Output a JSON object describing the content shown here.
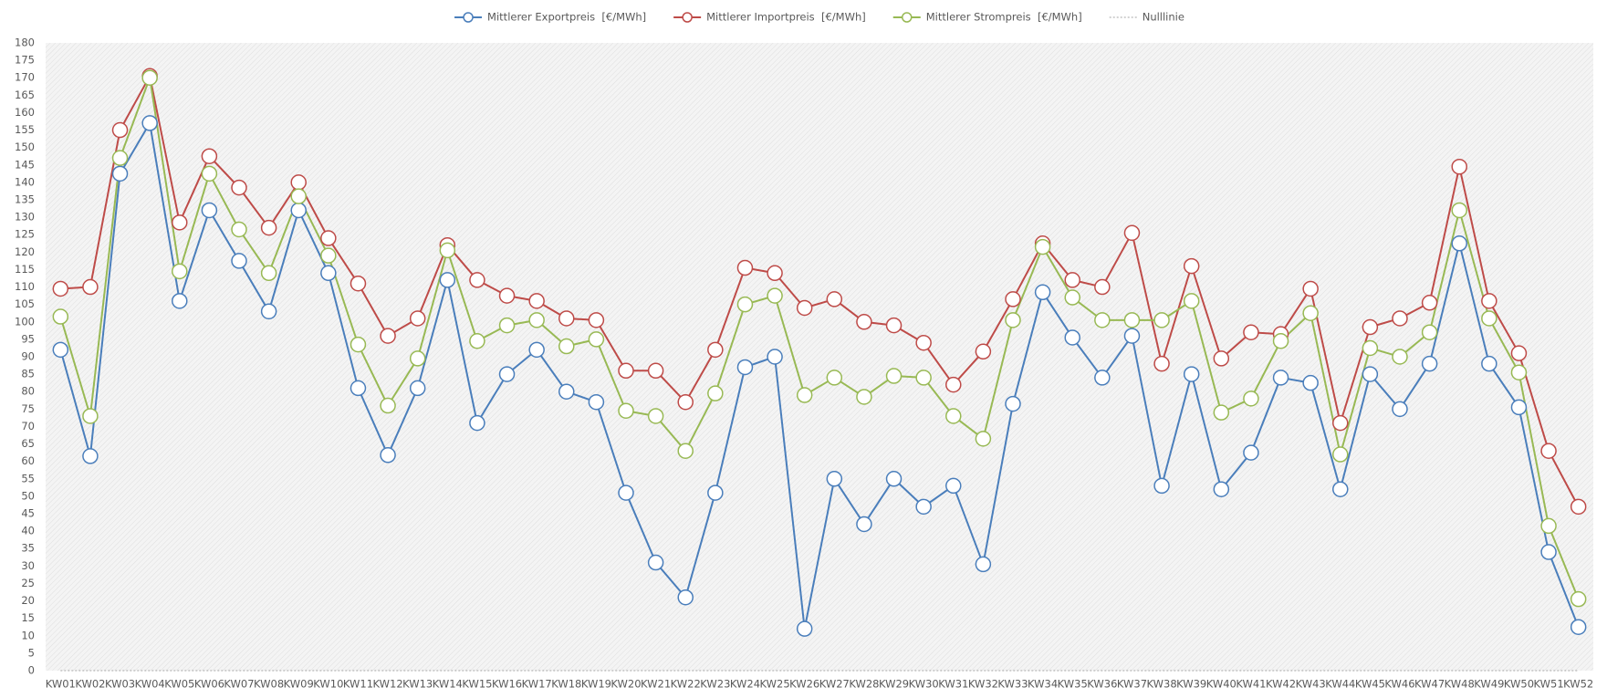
{
  "chart_data": {
    "type": "line",
    "categories": [
      "KW01",
      "KW02",
      "KW03",
      "KW04",
      "KW05",
      "KW06",
      "KW07",
      "KW08",
      "KW09",
      "KW10",
      "KW11",
      "KW12",
      "KW13",
      "KW14",
      "KW15",
      "KW16",
      "KW17",
      "KW18",
      "KW19",
      "KW20",
      "KW21",
      "KW22",
      "KW23",
      "KW24",
      "KW25",
      "KW26",
      "KW27",
      "KW28",
      "KW29",
      "KW30",
      "KW31",
      "KW32",
      "KW33",
      "KW34",
      "KW35",
      "KW36",
      "KW37",
      "KW38",
      "KW39",
      "KW40",
      "KW41",
      "KW42",
      "KW43",
      "KW44",
      "KW45",
      "KW46",
      "KW47",
      "KW48",
      "KW49",
      "KW50",
      "KW51",
      "KW52"
    ],
    "series": [
      {
        "name": "Mittlerer Exportpreis  [€/MWh]",
        "color": "#4a7ebb",
        "marker": "circle",
        "values": [
          92,
          61.5,
          142.5,
          157,
          106,
          132,
          117.5,
          103,
          132,
          114,
          81,
          61.8,
          81,
          112,
          71,
          85,
          92,
          80,
          77,
          51,
          31,
          21,
          51,
          87,
          90,
          12,
          55,
          42,
          55,
          47,
          53,
          30.5,
          76.5,
          108.5,
          95.5,
          84,
          96,
          53,
          85,
          52,
          62.5,
          84,
          82.5,
          52,
          85,
          75,
          88,
          122.5,
          88,
          75.5,
          34,
          12.5
        ]
      },
      {
        "name": "Mittlerer Importpreis  [€/MWh]",
        "color": "#be4b48",
        "marker": "circle",
        "values": [
          109.5,
          110,
          155,
          170.5,
          128.5,
          147.5,
          138.5,
          127,
          140,
          124,
          111,
          96,
          101,
          122,
          112,
          107.5,
          106,
          101,
          100.5,
          86,
          86,
          77,
          92,
          115.5,
          114,
          104,
          106.5,
          100,
          99,
          94,
          82,
          91.5,
          106.5,
          122.5,
          112,
          110,
          125.5,
          88,
          116,
          89.5,
          97,
          96.5,
          109.5,
          71,
          98.5,
          101,
          105.5,
          144.5,
          106,
          91,
          63,
          47
        ]
      },
      {
        "name": "Mittlerer Strompreis  [€/MWh]",
        "color": "#98b954",
        "marker": "circle",
        "values": [
          101.5,
          73,
          147,
          170,
          114.5,
          142.5,
          126.5,
          114,
          136,
          119,
          93.5,
          76,
          89.5,
          120.5,
          94.5,
          99,
          100.5,
          93,
          95,
          74.5,
          73,
          63,
          79.5,
          105,
          107.5,
          79,
          84,
          78.5,
          84.5,
          84,
          73,
          66.5,
          100.5,
          121.5,
          107,
          100.5,
          100.5,
          100.5,
          106,
          74,
          78,
          94.5,
          102.5,
          62,
          92.5,
          90,
          97,
          132,
          101,
          85.5,
          41.5,
          20.5
        ]
      },
      {
        "name": "Nulllinie",
        "color": "#a6a6a6",
        "marker": "none",
        "dash": "2 2",
        "values": [
          0,
          0,
          0,
          0,
          0,
          0,
          0,
          0,
          0,
          0,
          0,
          0,
          0,
          0,
          0,
          0,
          0,
          0,
          0,
          0,
          0,
          0,
          0,
          0,
          0,
          0,
          0,
          0,
          0,
          0,
          0,
          0,
          0,
          0,
          0,
          0,
          0,
          0,
          0,
          0,
          0,
          0,
          0,
          0,
          0,
          0,
          0,
          0,
          0,
          0,
          0,
          0
        ]
      }
    ],
    "ylim": [
      0,
      180
    ],
    "yticks": [
      0,
      5,
      10,
      15,
      20,
      25,
      30,
      35,
      40,
      45,
      50,
      55,
      60,
      65,
      70,
      75,
      80,
      85,
      90,
      95,
      100,
      105,
      110,
      115,
      120,
      125,
      130,
      135,
      140,
      145,
      150,
      155,
      160,
      165,
      170,
      175,
      180
    ],
    "grid": false,
    "legend": "top"
  }
}
